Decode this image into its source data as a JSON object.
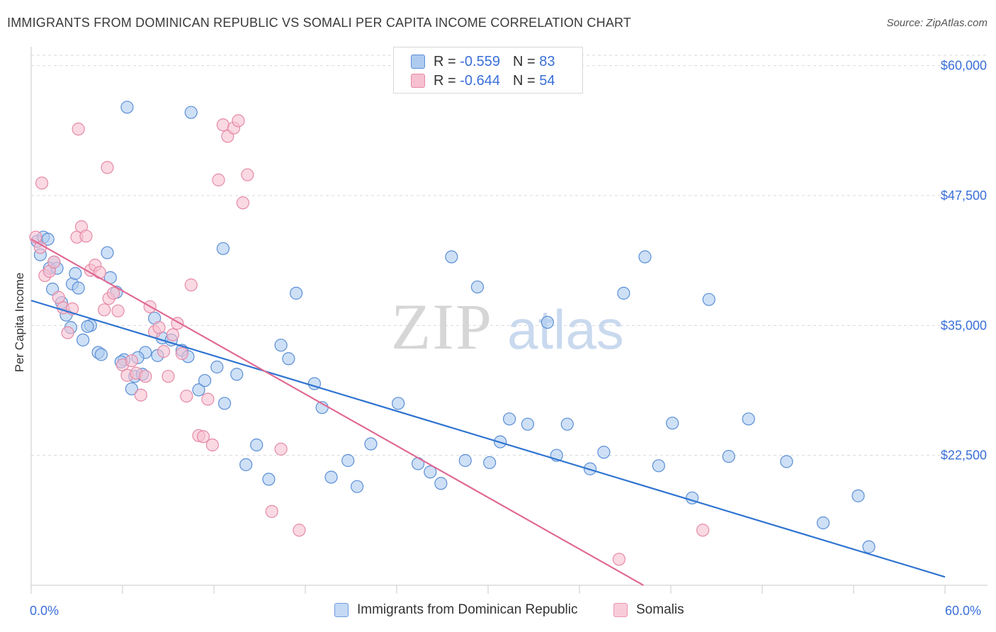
{
  "header": {
    "title": "IMMIGRANTS FROM DOMINICAN REPUBLIC VS SOMALI PER CAPITA INCOME CORRELATION CHART",
    "source": "Source: ZipAtlas.com"
  },
  "legend_top": {
    "series1": {
      "r_label": "R =",
      "r_value": "-0.559",
      "n_label": "N =",
      "n_value": "83"
    },
    "series2": {
      "r_label": "R =",
      "r_value": "-0.644",
      "n_label": "N =",
      "n_value": "54"
    }
  },
  "watermark": {
    "zip": "ZIP",
    "atlas": "atlas"
  },
  "colors": {
    "blue_fill": "#aecbf0",
    "blue_stroke": "#5b8fd6",
    "blue_line": "#2f74d0",
    "pink_fill": "#f6c0d0",
    "pink_stroke": "#e58aa6",
    "pink_line": "#e06a94",
    "tick_label": "#3a6fd8",
    "grid": "#d9d9d9"
  },
  "chart_data": {
    "type": "scatter",
    "title": "IMMIGRANTS FROM DOMINICAN REPUBLIC VS SOMALI PER CAPITA INCOME CORRELATION CHART",
    "xlabel": "",
    "ylabel": "Per Capita Income",
    "xlim": [
      0,
      60
    ],
    "ylim": [
      10000,
      61000
    ],
    "x_tick_labels": [
      "0.0%",
      "60.0%"
    ],
    "y_ticks": [
      22500,
      35000,
      47500,
      60000
    ],
    "y_tick_labels": [
      "$22,500",
      "$35,000",
      "$47,500",
      "$60,000"
    ],
    "grid": true,
    "legend_position": "bottom",
    "series": [
      {
        "name": "Immigrants from Dominican Republic",
        "r": -0.559,
        "n": 83,
        "trend": {
          "x": [
            0,
            60
          ],
          "y": [
            37400,
            10800
          ]
        },
        "points": [
          [
            0.4,
            43100
          ],
          [
            0.8,
            43500
          ],
          [
            0.6,
            41800
          ],
          [
            1.1,
            43300
          ],
          [
            1.5,
            41100
          ],
          [
            1.2,
            40500
          ],
          [
            1.7,
            40500
          ],
          [
            1.4,
            38500
          ],
          [
            2.0,
            37200
          ],
          [
            2.3,
            36000
          ],
          [
            2.7,
            39000
          ],
          [
            3.1,
            38600
          ],
          [
            2.9,
            40000
          ],
          [
            2.6,
            34800
          ],
          [
            3.4,
            33600
          ],
          [
            3.9,
            35000
          ],
          [
            3.7,
            34900
          ],
          [
            4.4,
            32400
          ],
          [
            4.6,
            32200
          ],
          [
            5.2,
            39600
          ],
          [
            5.6,
            38200
          ],
          [
            5.0,
            42000
          ],
          [
            6.1,
            31700
          ],
          [
            5.9,
            31500
          ],
          [
            6.8,
            30100
          ],
          [
            6.6,
            28900
          ],
          [
            7.3,
            30300
          ],
          [
            7.5,
            32400
          ],
          [
            7.0,
            31900
          ],
          [
            8.1,
            35700
          ],
          [
            8.6,
            33800
          ],
          [
            8.3,
            32100
          ],
          [
            9.2,
            33600
          ],
          [
            9.9,
            32600
          ],
          [
            10.3,
            32000
          ],
          [
            11.0,
            28800
          ],
          [
            11.4,
            29700
          ],
          [
            12.2,
            31000
          ],
          [
            12.7,
            27500
          ],
          [
            13.5,
            30300
          ],
          [
            14.1,
            21600
          ],
          [
            14.8,
            23500
          ],
          [
            15.6,
            20200
          ],
          [
            16.4,
            33100
          ],
          [
            16.9,
            31800
          ],
          [
            17.4,
            38100
          ],
          [
            18.6,
            29400
          ],
          [
            19.1,
            27100
          ],
          [
            19.7,
            20400
          ],
          [
            20.8,
            22000
          ],
          [
            21.4,
            19500
          ],
          [
            22.3,
            23600
          ],
          [
            24.1,
            27500
          ],
          [
            25.4,
            21700
          ],
          [
            26.2,
            20900
          ],
          [
            26.9,
            19800
          ],
          [
            27.6,
            41600
          ],
          [
            28.5,
            22000
          ],
          [
            29.3,
            38700
          ],
          [
            30.1,
            21800
          ],
          [
            30.8,
            23800
          ],
          [
            31.4,
            26000
          ],
          [
            32.6,
            25500
          ],
          [
            33.9,
            35300
          ],
          [
            34.5,
            22500
          ],
          [
            35.2,
            25500
          ],
          [
            36.7,
            21200
          ],
          [
            37.6,
            22800
          ],
          [
            38.9,
            38100
          ],
          [
            40.3,
            41600
          ],
          [
            41.2,
            21500
          ],
          [
            42.1,
            25600
          ],
          [
            43.4,
            18400
          ],
          [
            44.5,
            37500
          ],
          [
            45.8,
            22400
          ],
          [
            47.1,
            26000
          ],
          [
            49.6,
            21900
          ],
          [
            52.0,
            16000
          ],
          [
            54.3,
            18600
          ],
          [
            55.0,
            13700
          ],
          [
            10.5,
            55500
          ],
          [
            6.3,
            56000
          ],
          [
            12.6,
            42400
          ]
        ]
      },
      {
        "name": "Somalis",
        "r": -0.644,
        "n": 54,
        "trend": {
          "x": [
            0,
            40.2
          ],
          "y": [
            43300,
            10000
          ]
        },
        "points": [
          [
            0.3,
            43500
          ],
          [
            0.6,
            42500
          ],
          [
            0.9,
            39800
          ],
          [
            1.2,
            40200
          ],
          [
            1.5,
            41100
          ],
          [
            1.8,
            37700
          ],
          [
            2.1,
            36700
          ],
          [
            2.4,
            34300
          ],
          [
            2.7,
            36600
          ],
          [
            3.0,
            43500
          ],
          [
            3.3,
            44500
          ],
          [
            3.6,
            43600
          ],
          [
            3.9,
            40300
          ],
          [
            4.2,
            40800
          ],
          [
            4.5,
            40100
          ],
          [
            4.8,
            36500
          ],
          [
            5.1,
            37600
          ],
          [
            5.4,
            38100
          ],
          [
            5.7,
            36400
          ],
          [
            6.0,
            31200
          ],
          [
            6.3,
            30200
          ],
          [
            6.6,
            31600
          ],
          [
            6.9,
            30400
          ],
          [
            7.2,
            28300
          ],
          [
            7.5,
            30100
          ],
          [
            7.8,
            36800
          ],
          [
            8.1,
            34400
          ],
          [
            8.4,
            34800
          ],
          [
            8.7,
            32500
          ],
          [
            9.0,
            30100
          ],
          [
            9.3,
            34100
          ],
          [
            9.6,
            35200
          ],
          [
            9.9,
            32300
          ],
          [
            10.2,
            28200
          ],
          [
            10.5,
            38900
          ],
          [
            11.0,
            24400
          ],
          [
            11.3,
            24300
          ],
          [
            11.6,
            27900
          ],
          [
            11.9,
            23500
          ],
          [
            12.3,
            49000
          ],
          [
            12.6,
            54300
          ],
          [
            12.9,
            53200
          ],
          [
            13.3,
            54000
          ],
          [
            13.6,
            54700
          ],
          [
            13.9,
            46800
          ],
          [
            14.2,
            49500
          ],
          [
            15.8,
            17100
          ],
          [
            16.4,
            23100
          ],
          [
            17.6,
            15300
          ],
          [
            38.6,
            12500
          ],
          [
            44.1,
            15300
          ],
          [
            3.1,
            53900
          ],
          [
            5.0,
            50200
          ],
          [
            0.7,
            48700
          ]
        ]
      }
    ]
  },
  "bottom_legend": {
    "item1": "Immigrants from Dominican Republic",
    "item2": "Somalis"
  }
}
